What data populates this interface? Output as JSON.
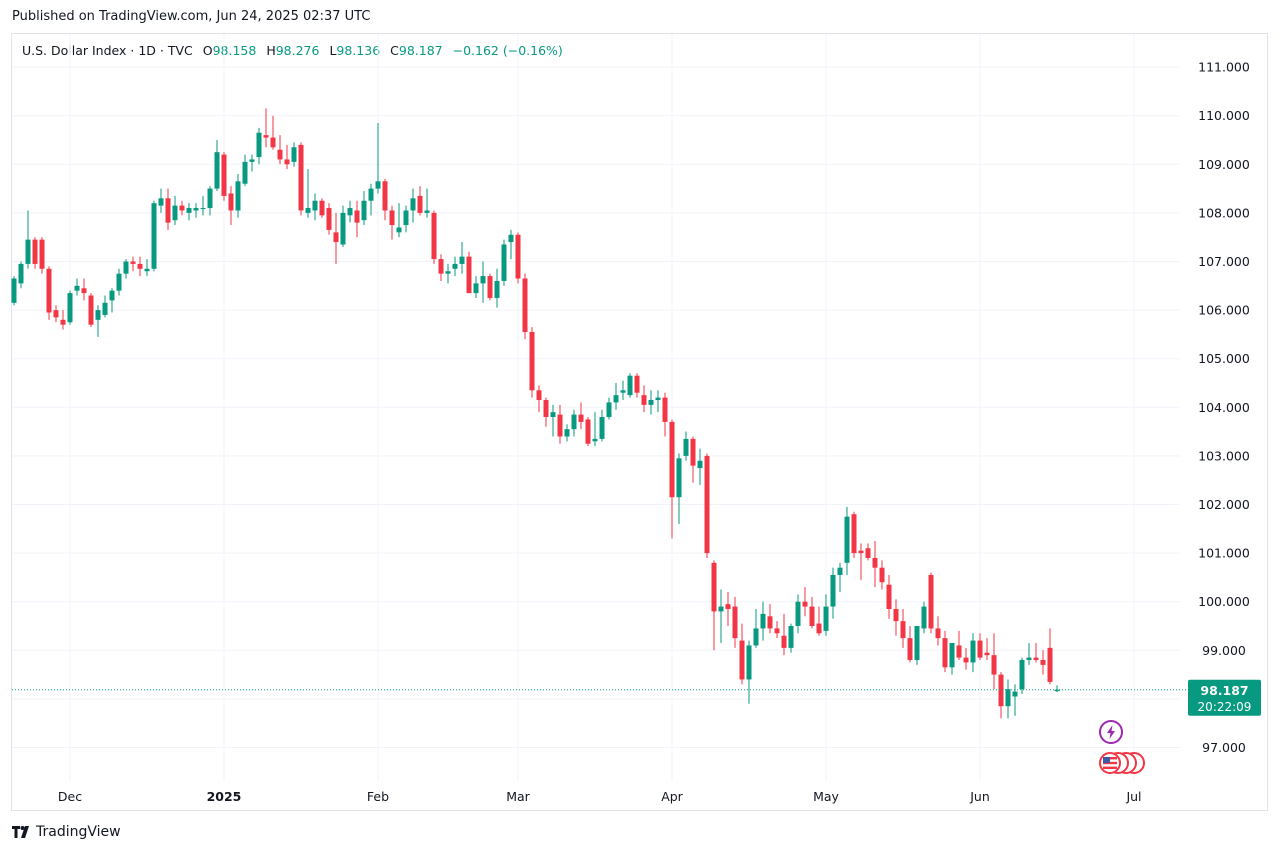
{
  "header": {
    "published": "Published on TradingView.com, Jun 24, 2025 02:37 UTC"
  },
  "legend": {
    "symbol": "U.S. Dollar Index · 1D · TVC",
    "o_label": "O",
    "o": "98.158",
    "h_label": "H",
    "h": "98.276",
    "l_label": "L",
    "l": "98.136",
    "c_label": "C",
    "c": "98.187",
    "change": "−0.162 (−0.16%)"
  },
  "price_tag": {
    "price": "98.187",
    "countdown": "20:22:09"
  },
  "footer": {
    "brand": "TradingView"
  },
  "colors": {
    "up": "#089981",
    "down": "#F23645",
    "grid": "#F0F3FA",
    "axis_text": "#131722"
  },
  "icons": [
    "lightning-icon",
    "us-flag-icon"
  ],
  "chart_data": {
    "type": "candlestick",
    "ylim": [
      96.5,
      111.4
    ],
    "y_ticks": [
      "97.000",
      "98.000",
      "99.000",
      "100.000",
      "101.000",
      "102.000",
      "103.000",
      "104.000",
      "105.000",
      "106.000",
      "107.000",
      "108.000",
      "109.000",
      "110.000",
      "111.000"
    ],
    "x_ticks": [
      {
        "label": "Dec",
        "index": 8
      },
      {
        "label": "2025",
        "index": 30
      },
      {
        "label": "Feb",
        "index": 52
      },
      {
        "label": "Mar",
        "index": 72
      },
      {
        "label": "Apr",
        "index": 94
      },
      {
        "label": "May",
        "index": 116
      },
      {
        "label": "Jun",
        "index": 138
      },
      {
        "label": "Jul",
        "index": 160
      }
    ],
    "last_price": 98.187,
    "candles": [
      [
        106.15,
        106.7,
        106.1,
        106.65
      ],
      [
        106.55,
        107.0,
        106.45,
        106.95
      ],
      [
        106.95,
        108.05,
        106.85,
        107.45
      ],
      [
        107.45,
        107.5,
        106.85,
        106.95
      ],
      [
        107.45,
        107.5,
        106.75,
        106.85
      ],
      [
        106.85,
        106.9,
        105.8,
        105.95
      ],
      [
        106.0,
        106.1,
        105.75,
        105.85
      ],
      [
        105.8,
        106.0,
        105.6,
        105.7
      ],
      [
        105.75,
        106.4,
        105.7,
        106.35
      ],
      [
        106.4,
        106.65,
        106.3,
        106.5
      ],
      [
        106.45,
        106.65,
        106.2,
        106.35
      ],
      [
        106.3,
        106.35,
        105.65,
        105.7
      ],
      [
        105.8,
        106.1,
        105.45,
        106.0
      ],
      [
        105.9,
        106.3,
        105.85,
        106.15
      ],
      [
        106.2,
        106.45,
        105.95,
        106.4
      ],
      [
        106.4,
        106.85,
        106.3,
        106.75
      ],
      [
        106.75,
        107.05,
        106.65,
        107.0
      ],
      [
        107.0,
        107.1,
        106.8,
        106.95
      ],
      [
        106.95,
        107.1,
        106.7,
        106.85
      ],
      [
        106.8,
        107.05,
        106.7,
        106.85
      ],
      [
        106.85,
        108.25,
        106.8,
        108.2
      ],
      [
        108.15,
        108.5,
        108.0,
        108.3
      ],
      [
        108.3,
        108.5,
        107.65,
        107.8
      ],
      [
        107.85,
        108.35,
        107.75,
        108.15
      ],
      [
        108.15,
        108.25,
        107.95,
        108.05
      ],
      [
        108.0,
        108.2,
        107.85,
        108.1
      ],
      [
        108.05,
        108.2,
        107.9,
        108.1
      ],
      [
        108.1,
        108.35,
        107.95,
        108.1
      ],
      [
        108.1,
        108.55,
        107.95,
        108.5
      ],
      [
        108.5,
        109.5,
        108.45,
        109.25
      ],
      [
        109.2,
        109.25,
        108.25,
        108.35
      ],
      [
        108.4,
        108.55,
        107.75,
        108.05
      ],
      [
        108.05,
        108.8,
        107.9,
        108.65
      ],
      [
        108.6,
        109.2,
        108.55,
        109.05
      ],
      [
        109.05,
        109.2,
        108.85,
        109.1
      ],
      [
        109.15,
        109.75,
        109.0,
        109.65
      ],
      [
        109.6,
        110.15,
        109.35,
        109.55
      ],
      [
        109.55,
        110.0,
        109.3,
        109.35
      ],
      [
        109.3,
        109.6,
        109.0,
        109.1
      ],
      [
        109.1,
        109.4,
        108.9,
        109.0
      ],
      [
        109.05,
        109.45,
        108.95,
        109.35
      ],
      [
        109.4,
        109.45,
        107.95,
        108.05
      ],
      [
        108.0,
        108.9,
        107.9,
        108.1
      ],
      [
        108.05,
        108.4,
        107.85,
        108.25
      ],
      [
        108.25,
        108.3,
        107.9,
        107.95
      ],
      [
        108.1,
        108.2,
        107.55,
        107.65
      ],
      [
        107.6,
        108.0,
        106.95,
        107.4
      ],
      [
        107.35,
        108.15,
        107.3,
        108.0
      ],
      [
        107.95,
        108.25,
        107.8,
        108.1
      ],
      [
        108.05,
        108.25,
        107.5,
        107.8
      ],
      [
        107.85,
        108.45,
        107.75,
        108.25
      ],
      [
        108.25,
        108.6,
        107.95,
        108.5
      ],
      [
        108.5,
        109.85,
        108.4,
        108.65
      ],
      [
        108.65,
        108.7,
        107.85,
        108.05
      ],
      [
        108.05,
        108.15,
        107.45,
        107.75
      ],
      [
        107.6,
        108.2,
        107.5,
        107.7
      ],
      [
        107.75,
        108.15,
        107.6,
        108.05
      ],
      [
        108.05,
        108.5,
        107.8,
        108.3
      ],
      [
        108.35,
        108.55,
        107.95,
        108.0
      ],
      [
        108.0,
        108.5,
        107.9,
        108.05
      ],
      [
        108.0,
        108.05,
        106.95,
        107.05
      ],
      [
        107.05,
        107.15,
        106.6,
        106.75
      ],
      [
        106.75,
        106.95,
        106.55,
        106.8
      ],
      [
        106.85,
        107.1,
        106.7,
        106.95
      ],
      [
        106.95,
        107.4,
        106.75,
        107.1
      ],
      [
        107.1,
        107.2,
        106.35,
        106.35
      ],
      [
        106.35,
        106.7,
        106.25,
        106.55
      ],
      [
        106.55,
        107.0,
        106.15,
        106.7
      ],
      [
        106.7,
        106.75,
        106.2,
        106.25
      ],
      [
        106.25,
        106.85,
        106.05,
        106.6
      ],
      [
        106.6,
        107.45,
        106.5,
        107.35
      ],
      [
        107.4,
        107.65,
        107.05,
        107.55
      ],
      [
        107.55,
        107.6,
        106.55,
        106.65
      ],
      [
        106.65,
        106.75,
        105.4,
        105.55
      ],
      [
        105.55,
        105.65,
        104.2,
        104.35
      ],
      [
        104.35,
        104.45,
        103.9,
        104.15
      ],
      [
        104.15,
        104.2,
        103.6,
        103.8
      ],
      [
        103.8,
        104.05,
        103.4,
        103.9
      ],
      [
        103.85,
        104.05,
        103.25,
        103.4
      ],
      [
        103.4,
        103.65,
        103.3,
        103.55
      ],
      [
        103.55,
        103.95,
        103.4,
        103.85
      ],
      [
        103.85,
        104.1,
        103.55,
        103.7
      ],
      [
        103.75,
        103.8,
        103.2,
        103.25
      ],
      [
        103.3,
        103.9,
        103.2,
        103.35
      ],
      [
        103.35,
        103.95,
        103.3,
        103.8
      ],
      [
        103.8,
        104.2,
        103.75,
        104.1
      ],
      [
        104.1,
        104.5,
        103.95,
        104.25
      ],
      [
        104.3,
        104.55,
        104.15,
        104.35
      ],
      [
        104.25,
        104.7,
        104.2,
        104.65
      ],
      [
        104.65,
        104.7,
        104.2,
        104.3
      ],
      [
        104.25,
        104.45,
        103.9,
        104.05
      ],
      [
        104.05,
        104.35,
        103.85,
        104.15
      ],
      [
        104.15,
        104.35,
        103.9,
        104.2
      ],
      [
        104.2,
        104.3,
        103.4,
        103.7
      ],
      [
        103.7,
        103.75,
        101.3,
        102.15
      ],
      [
        102.15,
        103.05,
        101.6,
        102.95
      ],
      [
        103.0,
        103.5,
        102.9,
        103.35
      ],
      [
        103.35,
        103.4,
        102.45,
        102.8
      ],
      [
        102.75,
        103.15,
        102.4,
        102.9
      ],
      [
        103.0,
        103.05,
        100.9,
        101.0
      ],
      [
        100.8,
        100.85,
        99.0,
        99.8
      ],
      [
        99.8,
        100.25,
        99.15,
        99.9
      ],
      [
        99.95,
        100.2,
        99.5,
        99.85
      ],
      [
        99.9,
        100.1,
        99.05,
        99.25
      ],
      [
        99.2,
        99.55,
        98.3,
        98.4
      ],
      [
        98.4,
        99.2,
        97.9,
        99.1
      ],
      [
        99.1,
        99.85,
        99.05,
        99.45
      ],
      [
        99.45,
        100.0,
        99.2,
        99.75
      ],
      [
        99.7,
        99.95,
        99.35,
        99.45
      ],
      [
        99.45,
        99.6,
        99.25,
        99.35
      ],
      [
        99.3,
        99.75,
        98.9,
        99.05
      ],
      [
        99.05,
        99.55,
        98.95,
        99.5
      ],
      [
        99.5,
        100.15,
        99.35,
        100.0
      ],
      [
        100.0,
        100.3,
        99.7,
        99.9
      ],
      [
        99.9,
        100.1,
        99.45,
        99.5
      ],
      [
        99.55,
        99.9,
        99.3,
        99.35
      ],
      [
        99.4,
        100.15,
        99.3,
        99.9
      ],
      [
        99.9,
        100.7,
        99.65,
        100.55
      ],
      [
        100.55,
        100.8,
        100.2,
        100.7
      ],
      [
        100.8,
        101.95,
        100.55,
        101.75
      ],
      [
        101.8,
        101.85,
        100.9,
        101.0
      ],
      [
        101.05,
        101.2,
        100.45,
        101.0
      ],
      [
        101.1,
        101.2,
        100.85,
        100.9
      ],
      [
        100.9,
        101.25,
        100.3,
        100.7
      ],
      [
        100.7,
        100.85,
        100.25,
        100.4
      ],
      [
        100.35,
        100.55,
        99.65,
        99.85
      ],
      [
        99.85,
        100.05,
        99.3,
        99.6
      ],
      [
        99.6,
        99.85,
        99.05,
        99.25
      ],
      [
        99.25,
        99.5,
        98.75,
        98.8
      ],
      [
        98.8,
        99.4,
        98.7,
        99.5
      ],
      [
        99.45,
        100.0,
        99.35,
        99.9
      ],
      [
        100.55,
        100.6,
        99.35,
        99.45
      ],
      [
        99.45,
        99.7,
        99.1,
        99.25
      ],
      [
        99.25,
        99.4,
        98.55,
        98.65
      ],
      [
        98.65,
        99.05,
        98.5,
        99.15
      ],
      [
        99.1,
        99.4,
        98.8,
        98.85
      ],
      [
        98.85,
        99.05,
        98.6,
        98.75
      ],
      [
        98.75,
        99.35,
        98.55,
        99.2
      ],
      [
        99.2,
        99.35,
        98.8,
        98.85
      ],
      [
        98.95,
        99.25,
        98.8,
        98.9
      ],
      [
        98.9,
        99.35,
        98.2,
        98.5
      ],
      [
        98.5,
        98.55,
        97.6,
        97.85
      ],
      [
        97.85,
        98.4,
        97.6,
        98.2
      ],
      [
        98.05,
        98.3,
        97.65,
        98.15
      ],
      [
        98.2,
        98.85,
        98.1,
        98.8
      ],
      [
        98.8,
        99.15,
        98.7,
        98.85
      ],
      [
        98.85,
        99.15,
        98.75,
        98.8
      ],
      [
        98.8,
        99.0,
        98.5,
        98.7
      ],
      [
        99.05,
        99.45,
        98.3,
        98.35
      ],
      [
        98.16,
        98.28,
        98.14,
        98.19
      ]
    ]
  }
}
